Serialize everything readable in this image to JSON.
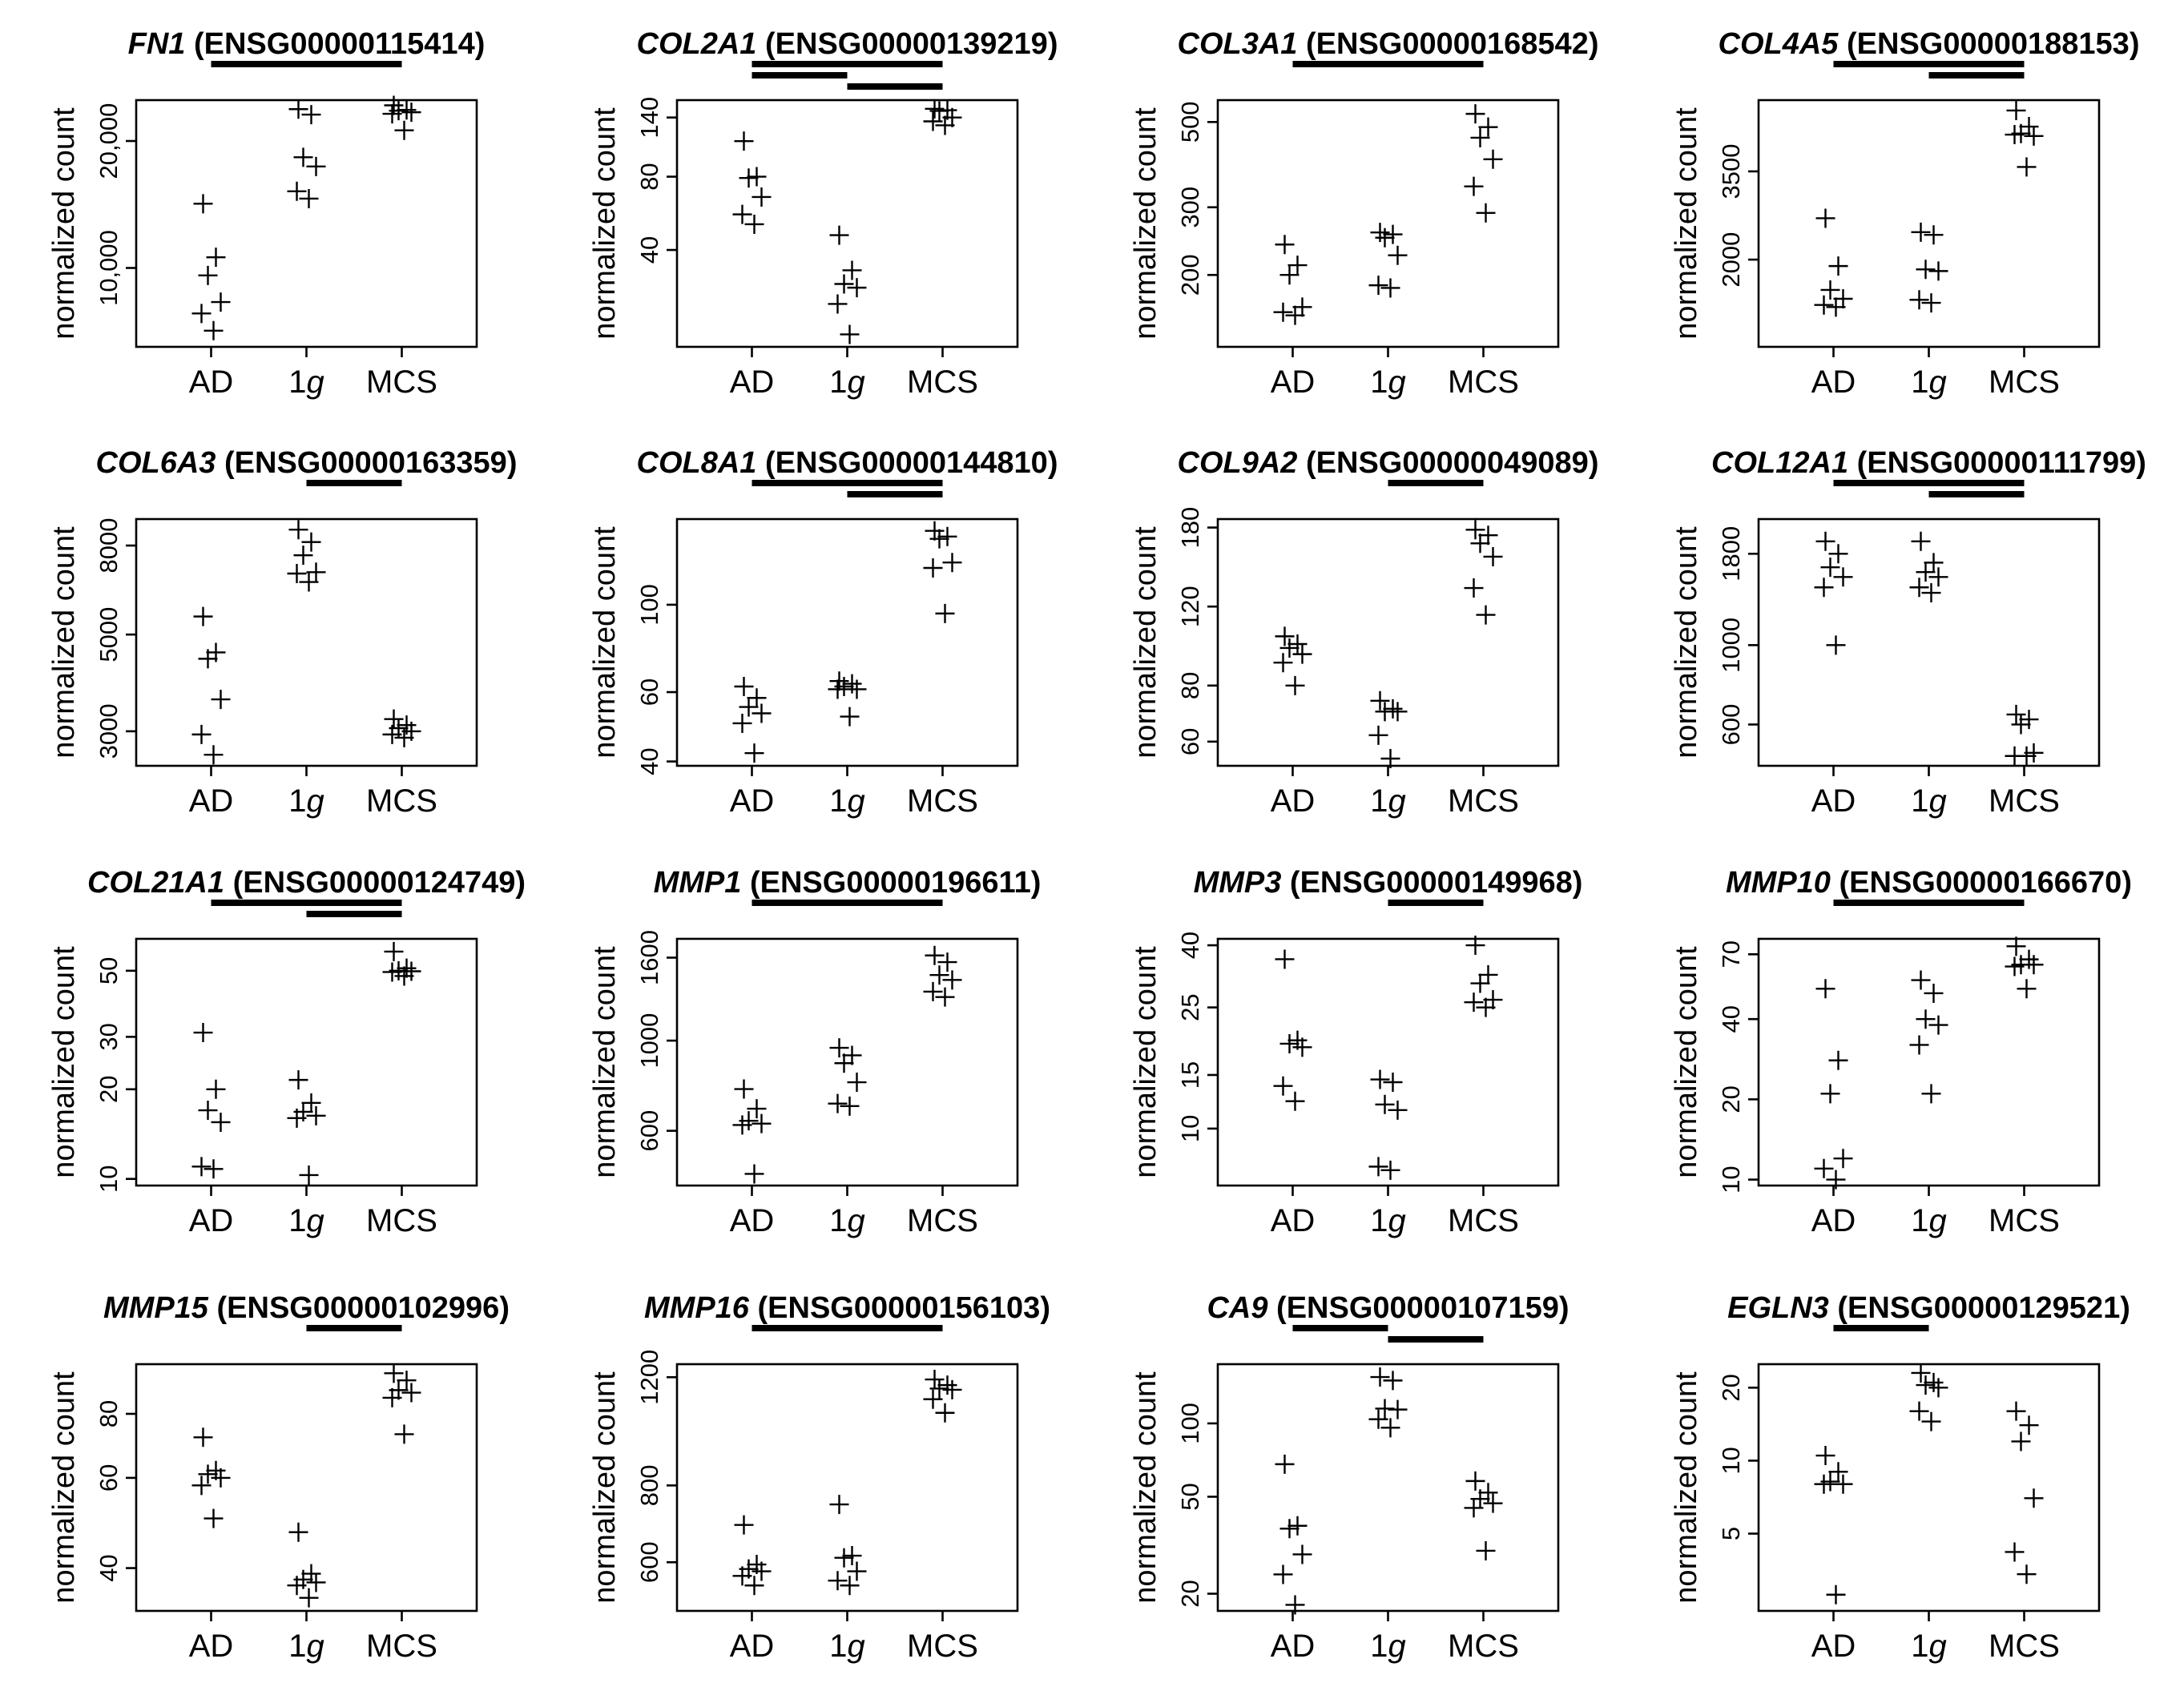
{
  "figure": {
    "y_axis_label": "normalized count"
  },
  "chart_data": [
    {
      "type": "scatter",
      "gene": "FN1",
      "ensembl": " (ENSG00000115414)",
      "categories": [
        "AD",
        "1g",
        "MCS"
      ],
      "ylabel": "normalized count",
      "yscale": "log",
      "ylim": [
        6500,
        25000
      ],
      "yticks": [
        10000,
        20000
      ],
      "yticklabels": [
        "10,000",
        "20,000"
      ],
      "significance_bars": [
        [
          "AD",
          "MCS"
        ]
      ],
      "series": [
        {
          "name": "AD",
          "values": [
            14200,
            10600,
            9600,
            8300,
            7800,
            7100
          ]
        },
        {
          "name": "1g",
          "values": [
            23800,
            23100,
            18300,
            17400,
            15200,
            14600
          ]
        },
        {
          "name": "MCS",
          "values": [
            24300,
            23700,
            23600,
            23400,
            23200,
            21200
          ]
        }
      ]
    },
    {
      "type": "scatter",
      "gene": "COL2A1",
      "ensembl": " (ENSG00000139219)",
      "categories": [
        "AD",
        "1g",
        "MCS"
      ],
      "ylabel": "normalized count",
      "yscale": "log",
      "ylim": [
        16,
        165
      ],
      "yticks": [
        40,
        80,
        140
      ],
      "yticklabels": [
        "40",
        "80",
        "140"
      ],
      "significance_bars": [
        [
          "AD",
          "MCS"
        ],
        [
          "AD",
          "1g"
        ],
        [
          "1g",
          "MCS"
        ]
      ],
      "series": [
        {
          "name": "AD",
          "values": [
            112,
            80,
            79,
            66,
            56,
            51
          ]
        },
        {
          "name": "1g",
          "values": [
            46,
            33,
            29,
            28,
            24,
            18
          ]
        },
        {
          "name": "MCS",
          "values": [
            152,
            150,
            149,
            140,
            135,
            130
          ]
        }
      ]
    },
    {
      "type": "scatter",
      "gene": "COL3A1",
      "ensembl": " (ENSG00000168542)",
      "categories": [
        "AD",
        "1g",
        "MCS"
      ],
      "ylabel": "normalized count",
      "yscale": "log",
      "ylim": [
        130,
        570
      ],
      "yticks": [
        200,
        300,
        500
      ],
      "yticklabels": [
        "200",
        "300",
        "500"
      ],
      "significance_bars": [
        [
          "AD",
          "MCS"
        ]
      ],
      "series": [
        {
          "name": "AD",
          "values": [
            240,
            212,
            200,
            165,
            160,
            157
          ]
        },
        {
          "name": "1g",
          "values": [
            258,
            255,
            250,
            225,
            188,
            185
          ]
        },
        {
          "name": "MCS",
          "values": [
            525,
            485,
            455,
            400,
            340,
            290
          ]
        }
      ]
    },
    {
      "type": "scatter",
      "gene": "COL4A5",
      "ensembl": " (ENSG00000188153)",
      "categories": [
        "AD",
        "1g",
        "MCS"
      ],
      "ylabel": "normalized count",
      "yscale": "log",
      "ylim": [
        1150,
        5500
      ],
      "yticks": [
        2000,
        3500
      ],
      "yticklabels": [
        "2000",
        "3500"
      ],
      "significance_bars": [
        [
          "AD",
          "MCS"
        ],
        [
          "1g",
          "MCS"
        ]
      ],
      "series": [
        {
          "name": "AD",
          "values": [
            2600,
            1920,
            1650,
            1560,
            1500,
            1480
          ]
        },
        {
          "name": "1g",
          "values": [
            2380,
            2340,
            1880,
            1860,
            1550,
            1520
          ]
        },
        {
          "name": "MCS",
          "values": [
            5150,
            4650,
            4450,
            4380,
            4420,
            3600
          ]
        }
      ]
    },
    {
      "type": "scatter",
      "gene": "COL6A3",
      "ensembl": " (ENSG00000163359)",
      "categories": [
        "AD",
        "1g",
        "MCS"
      ],
      "ylabel": "normalized count",
      "yscale": "log",
      "ylim": [
        2500,
        9200
      ],
      "yticks": [
        3000,
        5000,
        8000
      ],
      "yticklabels": [
        "3000",
        "5000",
        "8000"
      ],
      "significance_bars": [
        [
          "1g",
          "MCS"
        ]
      ],
      "series": [
        {
          "name": "AD",
          "values": [
            5500,
            4550,
            4400,
            3550,
            2950,
            2650
          ]
        },
        {
          "name": "1g",
          "values": [
            8700,
            8150,
            7600,
            6950,
            6900,
            6600
          ]
        },
        {
          "name": "MCS",
          "values": [
            3200,
            3100,
            3050,
            3000,
            2950,
            2900
          ]
        }
      ]
    },
    {
      "type": "scatter",
      "gene": "COL8A1",
      "ensembl": " (ENSG00000144810)",
      "categories": [
        "AD",
        "1g",
        "MCS"
      ],
      "ylabel": "normalized count",
      "yscale": "log",
      "ylim": [
        39,
        165
      ],
      "yticks": [
        40,
        60,
        100
      ],
      "yticklabels": [
        "40",
        "60",
        "100"
      ],
      "significance_bars": [
        [
          "AD",
          "MCS"
        ],
        [
          "1g",
          "MCS"
        ]
      ],
      "series": [
        {
          "name": "AD",
          "values": [
            62,
            58,
            55,
            53,
            50,
            42
          ]
        },
        {
          "name": "1g",
          "values": [
            64,
            63,
            62,
            61,
            61,
            52
          ]
        },
        {
          "name": "MCS",
          "values": [
            154,
            149,
            147,
            128,
            124,
            95
          ]
        }
      ]
    },
    {
      "type": "scatter",
      "gene": "COL9A2",
      "ensembl": " (ENSG00000049089)",
      "categories": [
        "AD",
        "1g",
        "MCS"
      ],
      "ylabel": "normalized count",
      "yscale": "log",
      "ylim": [
        53,
        188
      ],
      "yticks": [
        60,
        80,
        120,
        180
      ],
      "yticklabels": [
        "60",
        "80",
        "120",
        "180"
      ],
      "significance_bars": [
        [
          "1g",
          "MCS"
        ]
      ],
      "series": [
        {
          "name": "AD",
          "values": [
            103,
            99,
            97,
            94,
            90,
            80
          ]
        },
        {
          "name": "1g",
          "values": [
            74,
            71,
            70,
            70,
            62,
            55
          ]
        },
        {
          "name": "MCS",
          "values": [
            178,
            173,
            166,
            155,
            132,
            115
          ]
        }
      ]
    },
    {
      "type": "scatter",
      "gene": "COL12A1",
      "ensembl": " (ENSG00000111799)",
      "categories": [
        "AD",
        "1g",
        "MCS"
      ],
      "ylabel": "normalized count",
      "yscale": "log",
      "ylim": [
        460,
        2250
      ],
      "yticks": [
        600,
        1000,
        1800
      ],
      "yticklabels": [
        "600",
        "1000",
        "1800"
      ],
      "significance_bars": [
        [
          "AD",
          "MCS"
        ],
        [
          "1g",
          "MCS"
        ]
      ],
      "series": [
        {
          "name": "AD",
          "values": [
            1950,
            1800,
            1650,
            1550,
            1450,
            1000
          ]
        },
        {
          "name": "1g",
          "values": [
            1950,
            1700,
            1600,
            1550,
            1450,
            1400
          ]
        },
        {
          "name": "MCS",
          "values": [
            640,
            620,
            600,
            500,
            490,
            490
          ]
        }
      ]
    },
    {
      "type": "scatter",
      "gene": "COL21A1",
      "ensembl": " (ENSG00000124749)",
      "categories": [
        "AD",
        "1g",
        "MCS"
      ],
      "ylabel": "normalized count",
      "yscale": "log",
      "ylim": [
        9.5,
        64
      ],
      "yticks": [
        10,
        20,
        30,
        50
      ],
      "yticklabels": [
        "10",
        "20",
        "30",
        "50"
      ],
      "significance_bars": [
        [
          "AD",
          "MCS"
        ],
        [
          "1g",
          "MCS"
        ]
      ],
      "series": [
        {
          "name": "AD",
          "values": [
            31,
            20,
            17,
            15.5,
            11,
            10.8
          ]
        },
        {
          "name": "1g",
          "values": [
            21.5,
            18,
            16.8,
            16.3,
            16,
            10.3
          ]
        },
        {
          "name": "MCS",
          "values": [
            58,
            51,
            50,
            49.8,
            49.5,
            48
          ]
        }
      ]
    },
    {
      "type": "scatter",
      "gene": "MMP1",
      "ensembl": " (ENSG00000196611)",
      "categories": [
        "AD",
        "1g",
        "MCS"
      ],
      "ylabel": "normalized count",
      "yscale": "log",
      "ylim": [
        440,
        1780
      ],
      "yticks": [
        600,
        1000,
        1600
      ],
      "yticklabels": [
        "600",
        "1000",
        "1600"
      ],
      "significance_bars": [
        [
          "AD",
          "MCS"
        ]
      ],
      "series": [
        {
          "name": "AD",
          "values": [
            760,
            680,
            635,
            625,
            620,
            470
          ]
        },
        {
          "name": "1g",
          "values": [
            960,
            920,
            880,
            790,
            700,
            690
          ]
        },
        {
          "name": "MCS",
          "values": [
            1620,
            1560,
            1450,
            1410,
            1320,
            1280
          ]
        }
      ]
    },
    {
      "type": "scatter",
      "gene": "MMP3",
      "ensembl": " (ENSG00000149968)",
      "categories": [
        "AD",
        "1g",
        "MCS"
      ],
      "ylabel": "normalized count",
      "yscale": "log",
      "ylim": [
        6.5,
        42
      ],
      "yticks": [
        10,
        15,
        25,
        40
      ],
      "yticklabels": [
        "10",
        "15",
        "25",
        "40"
      ],
      "significance_bars": [
        [
          "1g",
          "MCS"
        ]
      ],
      "series": [
        {
          "name": "AD",
          "values": [
            36,
            19.5,
            19,
            18.5,
            13.8,
            12.3
          ]
        },
        {
          "name": "1g",
          "values": [
            14.5,
            14.2,
            12,
            11.5,
            7.5,
            7.3
          ]
        },
        {
          "name": "MCS",
          "values": [
            40,
            32,
            30,
            26.5,
            26,
            25
          ]
        }
      ]
    },
    {
      "type": "scatter",
      "gene": "MMP10",
      "ensembl": " (ENSG00000166670)",
      "categories": [
        "AD",
        "1g",
        "MCS"
      ],
      "ylabel": "normalized count",
      "yscale": "log",
      "ylim": [
        9.5,
        80
      ],
      "yticks": [
        10,
        20,
        40,
        70
      ],
      "yticklabels": [
        "10",
        "20",
        "40",
        "70"
      ],
      "significance_bars": [
        [
          "AD",
          "MCS"
        ]
      ],
      "series": [
        {
          "name": "AD",
          "values": [
            52,
            28,
            21,
            12,
            11,
            10
          ]
        },
        {
          "name": "1g",
          "values": [
            56,
            50,
            40,
            38,
            32,
            21
          ]
        },
        {
          "name": "MCS",
          "values": [
            75,
            67,
            64,
            64,
            63,
            52
          ]
        }
      ]
    },
    {
      "type": "scatter",
      "gene": "MMP15",
      "ensembl": " (ENSG00000102996)",
      "categories": [
        "AD",
        "1g",
        "MCS"
      ],
      "ylabel": "normalized count",
      "yscale": "log",
      "ylim": [
        33,
        100
      ],
      "yticks": [
        40,
        60,
        80
      ],
      "yticklabels": [
        "40",
        "60",
        "80"
      ],
      "significance_bars": [
        [
          "1g",
          "MCS"
        ]
      ],
      "series": [
        {
          "name": "AD",
          "values": [
            72,
            62,
            61,
            60,
            58,
            50
          ]
        },
        {
          "name": "1g",
          "values": [
            47,
            39,
            38,
            37.5,
            37,
            35
          ]
        },
        {
          "name": "MCS",
          "values": [
            96,
            93,
            89,
            88,
            86,
            73
          ]
        }
      ]
    },
    {
      "type": "scatter",
      "gene": "MMP16",
      "ensembl": " (ENSG00000156103)",
      "categories": [
        "AD",
        "1g",
        "MCS"
      ],
      "ylabel": "normalized count",
      "yscale": "log",
      "ylim": [
        500,
        1260
      ],
      "yticks": [
        600,
        800,
        1200
      ],
      "yticklabels": [
        "600",
        "800",
        "1200"
      ],
      "significance_bars": [
        [
          "AD",
          "MCS"
        ]
      ],
      "series": [
        {
          "name": "AD",
          "values": [
            690,
            595,
            585,
            580,
            570,
            550
          ]
        },
        {
          "name": "1g",
          "values": [
            745,
            615,
            610,
            580,
            560,
            550
          ]
        },
        {
          "name": "MCS",
          "values": [
            1190,
            1165,
            1150,
            1145,
            1105,
            1050
          ]
        }
      ]
    },
    {
      "type": "scatter",
      "gene": "CA9",
      "ensembl": " (ENSG00000107159)",
      "categories": [
        "AD",
        "1g",
        "MCS"
      ],
      "ylabel": "normalized count",
      "yscale": "log",
      "ylim": [
        17,
        175
      ],
      "yticks": [
        20,
        50,
        100
      ],
      "yticklabels": [
        "20",
        "50",
        "100"
      ],
      "significance_bars": [
        [
          "AD",
          "1g"
        ],
        [
          "1g",
          "MCS"
        ]
      ],
      "series": [
        {
          "name": "AD",
          "values": [
            68,
            38,
            37,
            29,
            24,
            18
          ]
        },
        {
          "name": "1g",
          "values": [
            155,
            150,
            115,
            114,
            104,
            96
          ]
        },
        {
          "name": "MCS",
          "values": [
            58,
            52,
            49,
            47,
            45,
            30
          ]
        }
      ]
    },
    {
      "type": "scatter",
      "gene": "EGLN3",
      "ensembl": " (ENSG00000129521)",
      "categories": [
        "AD",
        "1g",
        "MCS"
      ],
      "ylabel": "normalized count",
      "yscale": "log",
      "ylim": [
        2.4,
        25
      ],
      "yticks": [
        5,
        10,
        20
      ],
      "yticklabels": [
        "5",
        "10",
        "20"
      ],
      "significance_bars": [
        [
          "AD",
          "1g"
        ]
      ],
      "series": [
        {
          "name": "AD",
          "values": [
            10.5,
            9,
            8.2,
            8,
            8,
            2.8
          ]
        },
        {
          "name": "1g",
          "values": [
            23,
            21,
            20.5,
            20,
            16,
            14.5
          ]
        },
        {
          "name": "MCS",
          "values": [
            16,
            14,
            12,
            7,
            4.2,
            3.4
          ]
        }
      ]
    }
  ]
}
